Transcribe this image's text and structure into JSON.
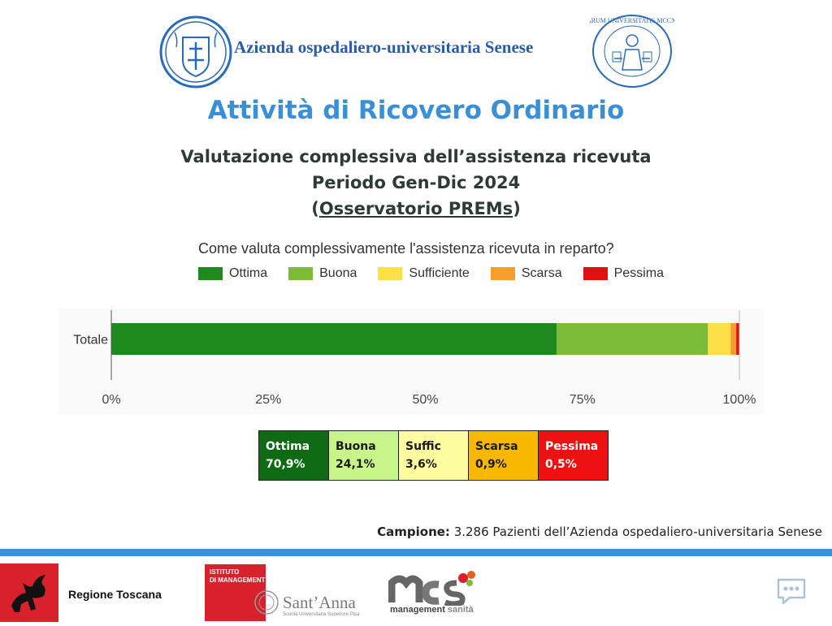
{
  "header": {
    "org_name": "Azienda ospedaliero-universitaria Senese",
    "seal_text": "SENARUM UNIVERSITATIS MCCXXXX"
  },
  "title": "Attività di Ricovero Ordinario",
  "subtitle": {
    "line1": "Valutazione complessiva dell’assistenza ricevuta",
    "line2": "Periodo Gen-Dic 2024",
    "line3_open": "(",
    "line3_link": "Osservatorio PREMs",
    "line3_close": ")"
  },
  "chart_data": {
    "type": "bar",
    "orientation": "horizontal",
    "stacked": true,
    "title": "Come valuta complessivamente l'assistenza ricevuta in reparto?",
    "categories": [
      "Totale"
    ],
    "series": [
      {
        "name": "Ottima",
        "values": [
          70.9
        ],
        "color": "#1e8a1e"
      },
      {
        "name": "Buona",
        "values": [
          24.1
        ],
        "color": "#7cbb36"
      },
      {
        "name": "Sufficiente",
        "values": [
          3.6
        ],
        "color": "#fde047"
      },
      {
        "name": "Scarsa",
        "values": [
          0.9
        ],
        "color": "#f59e2b"
      },
      {
        "name": "Pessima",
        "values": [
          0.5
        ],
        "color": "#e01010"
      }
    ],
    "xlim": [
      0,
      100
    ],
    "xticks": [
      "0%",
      "25%",
      "50%",
      "75%",
      "100%"
    ],
    "legend_position": "top",
    "grid": false
  },
  "summary_table": [
    {
      "label": "Ottima",
      "value": "70,9%",
      "bg": "#0e6b14",
      "fg": "#ffffff"
    },
    {
      "label": "Buona",
      "value": "24,1%",
      "bg": "#c8f58a",
      "fg": "#1a1a1a"
    },
    {
      "label": "Suffic",
      "value": "3,6%",
      "bg": "#fdfda0",
      "fg": "#1a1a1a"
    },
    {
      "label": "Scarsa",
      "value": "0,9%",
      "bg": "#f9b800",
      "fg": "#1a1a1a"
    },
    {
      "label": "Pessima",
      "value": "0,5%",
      "bg": "#ee1111",
      "fg": "#ffffff"
    }
  ],
  "sample": {
    "label": "Campione:",
    "text": "3.286 Pazienti dell’Azienda ospedaliero-universitaria Senese"
  },
  "footer": {
    "regione": "Regione Toscana",
    "istituto_line1": "ISTITUTO",
    "istituto_line2": "DI MANAGEMENT",
    "santanna": "Sant’Anna",
    "santanna_sub": "Scuola Universitaria Superiore Pisa",
    "mes_line": "management",
    "mes_sanita": "sanità"
  },
  "colors": {
    "accent_blue": "#3a8fd6",
    "org_blue": "#2a5aa8"
  }
}
